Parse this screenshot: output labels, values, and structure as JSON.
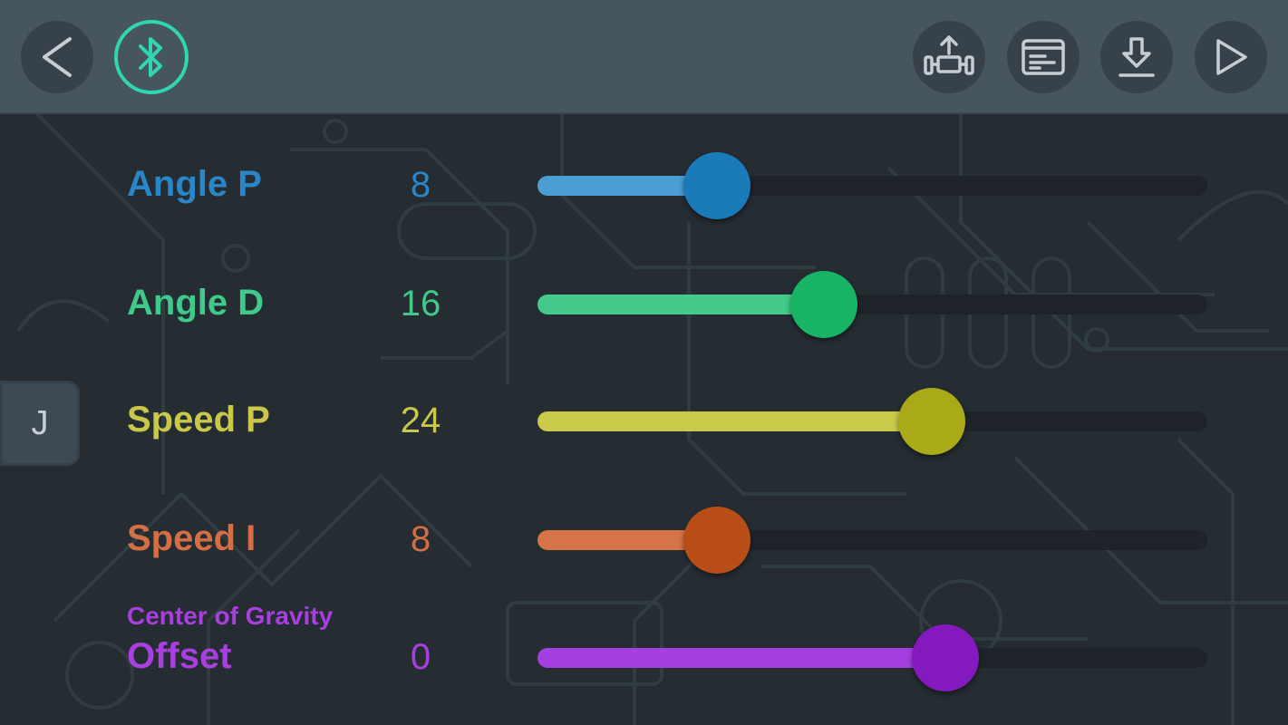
{
  "toolbar": {
    "back_icon": "chevron-left-icon",
    "bluetooth_icon": "bluetooth-icon",
    "upload_icon": "robot-upload-icon",
    "console_icon": "console-card-icon",
    "download_icon": "download-icon",
    "play_icon": "play-icon"
  },
  "side_tab": {
    "label": "J"
  },
  "colors": {
    "angle_p": "#2a86c6",
    "angle_d": "#3fc98a",
    "speed_p": "#c9c84a",
    "speed_i": "#d46e45",
    "offset": "#a93fe0",
    "accent_bluetooth": "#2fd6b0"
  },
  "sliders": [
    {
      "key": "angle_p",
      "label": "Angle P",
      "sublabel": "",
      "value": "8",
      "level": 0.16,
      "fill": "#4a9ed3",
      "thumb": "#1b7ab8",
      "text": "#2a86c6"
    },
    {
      "key": "angle_d",
      "label": "Angle D",
      "sublabel": "",
      "value": "16",
      "level": 0.32,
      "fill": "#45c98a",
      "thumb": "#17b466",
      "text": "#3fc98a"
    },
    {
      "key": "speed_p",
      "label": "Speed P",
      "sublabel": "",
      "value": "24",
      "level": 0.48,
      "fill": "#c9c94a",
      "thumb": "#aaa917",
      "text": "#c9c84a"
    },
    {
      "key": "speed_i",
      "label": "Speed I",
      "sublabel": "",
      "value": "8",
      "level": 0.16,
      "fill": "#d67448",
      "thumb": "#b94d18",
      "text": "#d46e45"
    },
    {
      "key": "offset",
      "label": "Offset",
      "sublabel": "Center of Gravity",
      "value": "0",
      "level": 0.5,
      "fill": "#a53fe0",
      "thumb": "#8419be",
      "text": "#a93fe0"
    }
  ]
}
